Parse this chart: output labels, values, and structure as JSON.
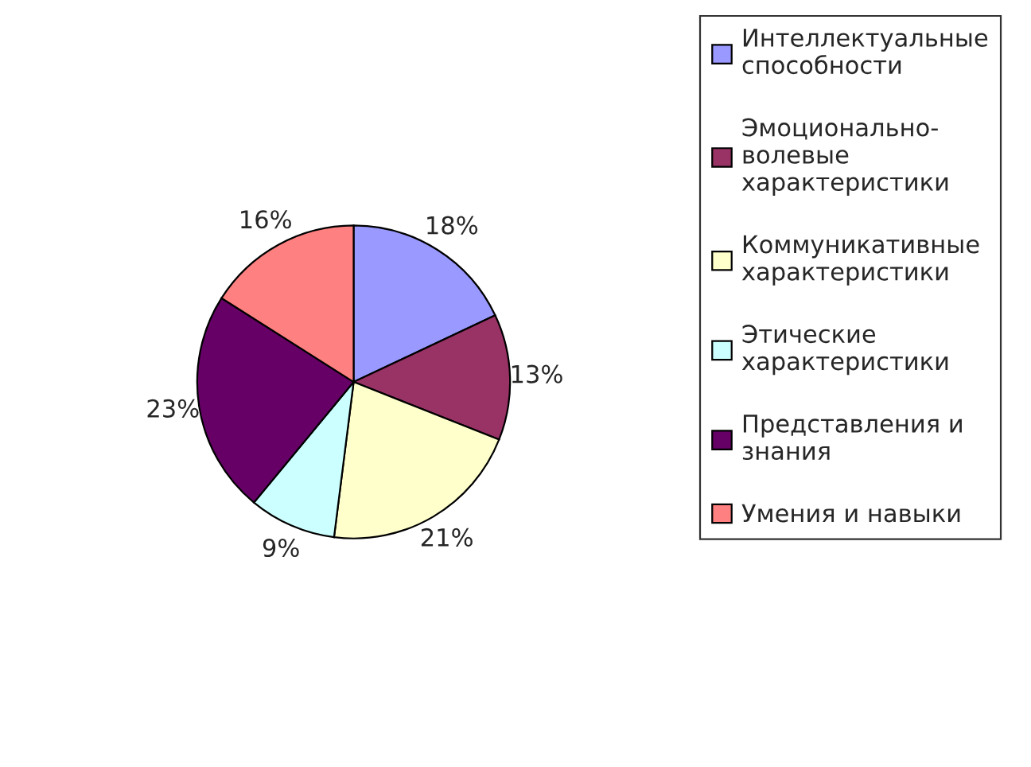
{
  "chart_data": {
    "type": "pie",
    "categories": [
      "Интеллектуальные способности",
      "Эмоционально-волевые характеристики",
      "Коммуникативные характеристики",
      "Этические характеристики",
      "Представления и знания",
      "Умения и навыки"
    ],
    "values": [
      18,
      13,
      21,
      9,
      23,
      16
    ],
    "value_labels": [
      "18%",
      "13%",
      "21%",
      "9%",
      "23%",
      "16%"
    ],
    "colors": [
      "#9999ff",
      "#993366",
      "#ffffcc",
      "#ccffff",
      "#660066",
      "#ff8080"
    ],
    "legend": "right"
  }
}
